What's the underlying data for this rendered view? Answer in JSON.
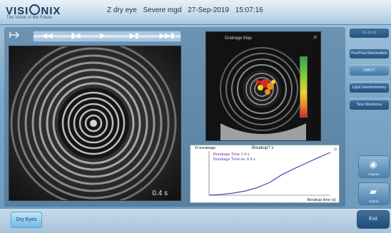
{
  "header": {
    "brand": "VISIONIX",
    "tagline": "The Vision of the Future",
    "patient": "Z dry eye",
    "diagnosis": "Severe mgd",
    "date": "27-Sep-2019",
    "time": "15:07:16"
  },
  "player": {
    "back_icon": "back-arrow-icon",
    "controls": [
      "first-icon",
      "prev-icon",
      "play-icon",
      "next-icon",
      "last-icon"
    ]
  },
  "video": {
    "timestamp": "0.4 s"
  },
  "drainage_map": {
    "title": "Drainage Map",
    "magnify_icon": "magnifier-icon"
  },
  "graph": {
    "title": "Breakup? s",
    "y_label": "% breakage",
    "legend": [
      "Breakage Time 1.4 s",
      "Breakage Time av. 6.4 s"
    ],
    "x_label": "Breakup time (s)",
    "line_color": "#5a3fa8"
  },
  "chart_data": {
    "type": "line",
    "x": [
      0,
      1,
      2,
      3,
      4,
      5,
      6,
      7,
      8,
      9,
      10
    ],
    "y": [
      0,
      2,
      5,
      10,
      18,
      30,
      48,
      62,
      75,
      88,
      100
    ],
    "ylim": [
      0,
      100
    ]
  },
  "sidebar": {
    "top_icon": "screen-icon",
    "items": [
      {
        "label": "Pre/Post Illumination",
        "active": false
      },
      {
        "label": "NIBUT",
        "active": true
      },
      {
        "label": "Lipid Interferometry",
        "active": false
      },
      {
        "label": "Tear Meniscus",
        "active": false
      }
    ],
    "big_buttons": [
      {
        "icon": "eye-capture-icon",
        "label": "Capture"
      },
      {
        "icon": "folder-export-icon",
        "label": "Export"
      }
    ]
  },
  "footer": {
    "dry_eyes_label": "Dry Eyes",
    "exit_label": "Exit"
  },
  "colors": {
    "accent": "#3f78a8",
    "panel": "#6a93b4"
  }
}
